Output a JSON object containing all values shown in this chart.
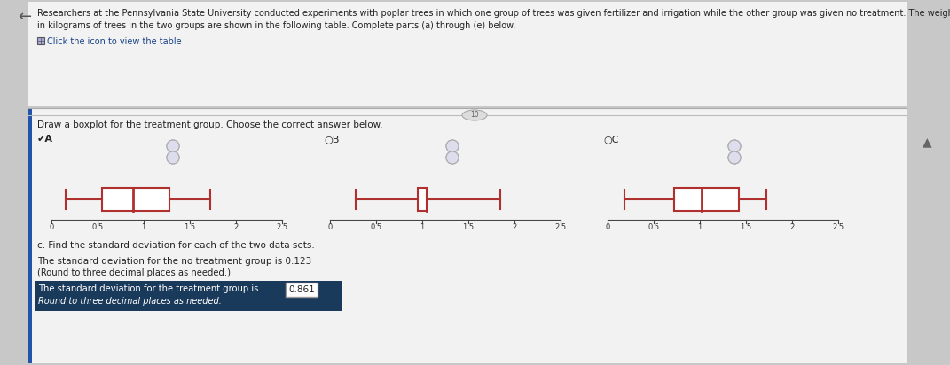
{
  "bg_color": "#c8c8c8",
  "panel_color": "#f2f2f2",
  "text_color": "#222222",
  "header_text_line1": "Researchers at the Pennsylvania State University conducted experiments with poplar trees in which one group of trees was given fertilizer and irrigation while the other group was given no treatment. The weights",
  "header_text_line2": "in kilograms of trees in the two groups are shown in the following table. Complete parts (a) through (e) below.",
  "icon_text": "Click the icon to view the table",
  "section_label": "Draw a boxplot for the treatment group. Choose the correct answer below.",
  "boxplot_A": {
    "whisker_low": 0.15,
    "q1": 0.55,
    "median": 0.88,
    "q3": 1.28,
    "whisker_high": 1.72,
    "xmin": 0,
    "xmax": 2.5,
    "xticks": [
      0,
      0.5,
      1,
      1.5,
      2,
      2.5
    ],
    "xticklabels": [
      "0",
      "0.5",
      "1",
      "1.5",
      "2",
      "2.5"
    ]
  },
  "boxplot_B": {
    "whisker_low": 0.28,
    "q1": 0.95,
    "median": 1.05,
    "q3": 1.05,
    "whisker_high": 1.85,
    "xmin": 0,
    "xmax": 2.5,
    "xticks": [
      0,
      0.5,
      1,
      1.5,
      2,
      2.5
    ],
    "xticklabels": [
      "0",
      "0.5",
      "1",
      "1.5",
      "2",
      "2.5"
    ]
  },
  "boxplot_C": {
    "whisker_low": 0.18,
    "q1": 0.72,
    "median": 1.02,
    "q3": 1.42,
    "whisker_high": 1.72,
    "xmin": 0,
    "xmax": 2.5,
    "xticks": [
      0,
      0.5,
      1,
      1.5,
      2,
      2.5
    ],
    "xticklabels": [
      "0",
      "0.5",
      "1",
      "1.5",
      "2",
      "2.5"
    ]
  },
  "box_color": "#b03030",
  "section_c_text": "c. Find the standard deviation for each of the two data sets.",
  "std_no_treatment_line1": "The standard deviation for the no treatment group is 0.123",
  "std_no_treatment_line2": "(Round to three decimal places as needed.)",
  "std_treatment_text": "The standard deviation for the treatment group is",
  "std_treatment_value": "0.861",
  "std_treatment_note": "Round to three decimal places as needed.",
  "highlight_color": "#1a3a5c",
  "highlight_text_color": "#ffffff",
  "value_box_color": "#ffffff",
  "value_box_border": "#888888"
}
